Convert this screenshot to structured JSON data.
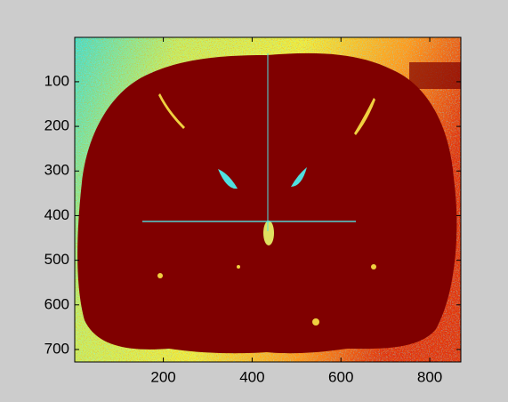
{
  "chart_data": {
    "type": "image",
    "xlim": [
      0.5,
      870
    ],
    "xticks": [
      200,
      400,
      600,
      800
    ],
    "ylim": [
      0.5,
      728
    ],
    "yticks": [
      100,
      200,
      300,
      400,
      500,
      600,
      700
    ],
    "y_reversed": true
  }
}
